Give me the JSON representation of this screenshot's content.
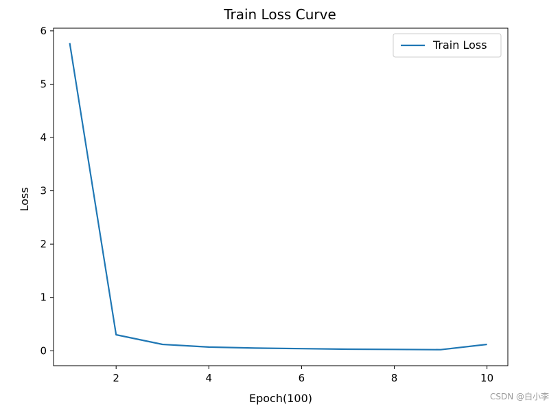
{
  "chart_data": {
    "type": "line",
    "title": "Train Loss Curve",
    "xlabel": "Epoch(100)",
    "ylabel": "Loss",
    "xlim": [
      0.65,
      10.45
    ],
    "ylim": [
      -0.28,
      6.05
    ],
    "xticks": [
      2,
      4,
      6,
      8,
      10
    ],
    "yticks": [
      0,
      1,
      2,
      3,
      4,
      5,
      6
    ],
    "grid": false,
    "legend_position": "top-right",
    "series": [
      {
        "name": "Train Loss",
        "color": "#1f77b4",
        "x": [
          1,
          2,
          3,
          4,
          5,
          6,
          7,
          8,
          9,
          10
        ],
        "y": [
          5.77,
          0.3,
          0.12,
          0.07,
          0.05,
          0.04,
          0.03,
          0.025,
          0.02,
          0.12
        ]
      }
    ]
  },
  "watermark": "CSDN @白小李"
}
